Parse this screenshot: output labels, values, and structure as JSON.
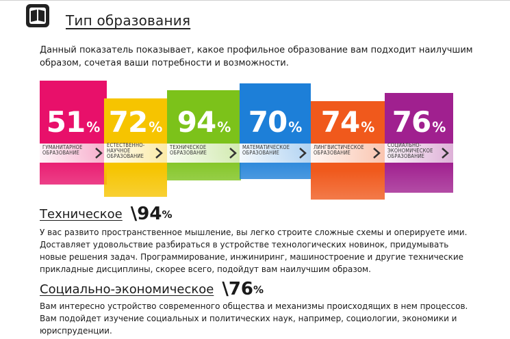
{
  "header": {
    "title": "Тип образования",
    "icon": "book-icon"
  },
  "intro": "Данный показатель показывает, какое профильное образование вам подходит наилучшим образом, сочетая ваши потребности и возможности.",
  "bands": [
    {
      "percent": "51",
      "sign": "%",
      "label": "ГУМАНИТАРНОЕ\nОБРАЗОВАНИЕ",
      "color": "#e8106a"
    },
    {
      "percent": "72",
      "sign": "%",
      "label": "ЕСТЕСТВЕННО-\nНАУЧНОЕ\nОБРАЗОВАНИЕ",
      "color": "#f6c400"
    },
    {
      "percent": "94",
      "sign": "%",
      "label": "ТЕХНИЧЕСКОЕ\nОБРАЗОВАНИЕ",
      "color": "#7cc21a"
    },
    {
      "percent": "70",
      "sign": "%",
      "label": "МАТЕМАТИЧЕСКОЕ\nОБРАЗОВАНИЕ",
      "color": "#1d7fd8"
    },
    {
      "percent": "74",
      "sign": "%",
      "label": "ЛИНГВИСТИЧЕСКОЕ\nОБРАЗОВАНИЕ",
      "color": "#f0591c"
    },
    {
      "percent": "76",
      "sign": "%",
      "label": "СОЦИАЛЬНО-\nЭКОНОМИЧЕСКОЕ\nОБРАЗОВАНИЕ",
      "color": "#a0208f"
    }
  ],
  "sections": [
    {
      "name": "Техническое",
      "value": "94",
      "sign": "%",
      "text": "У вас развито пространственное мышление, вы легко строите сложные схемы и оперируете ими. Доставляет удовольствие разбираться в устройстве технологических новинок, придумывать новые решения задач. Программирование, инжиниринг, машиностроение и другие технические прикладные дисциплины, скорее всего, подойдут вам наилучшим образом."
    },
    {
      "name": "Социально-экономическое",
      "value": "76",
      "sign": "%",
      "text": "Вам интересно устройство современного общества и механизмы происходящих в нем процессов. Вам подойдет изучение социальных и политических наук, например, социологии, экономики и юриспруденции."
    }
  ]
}
